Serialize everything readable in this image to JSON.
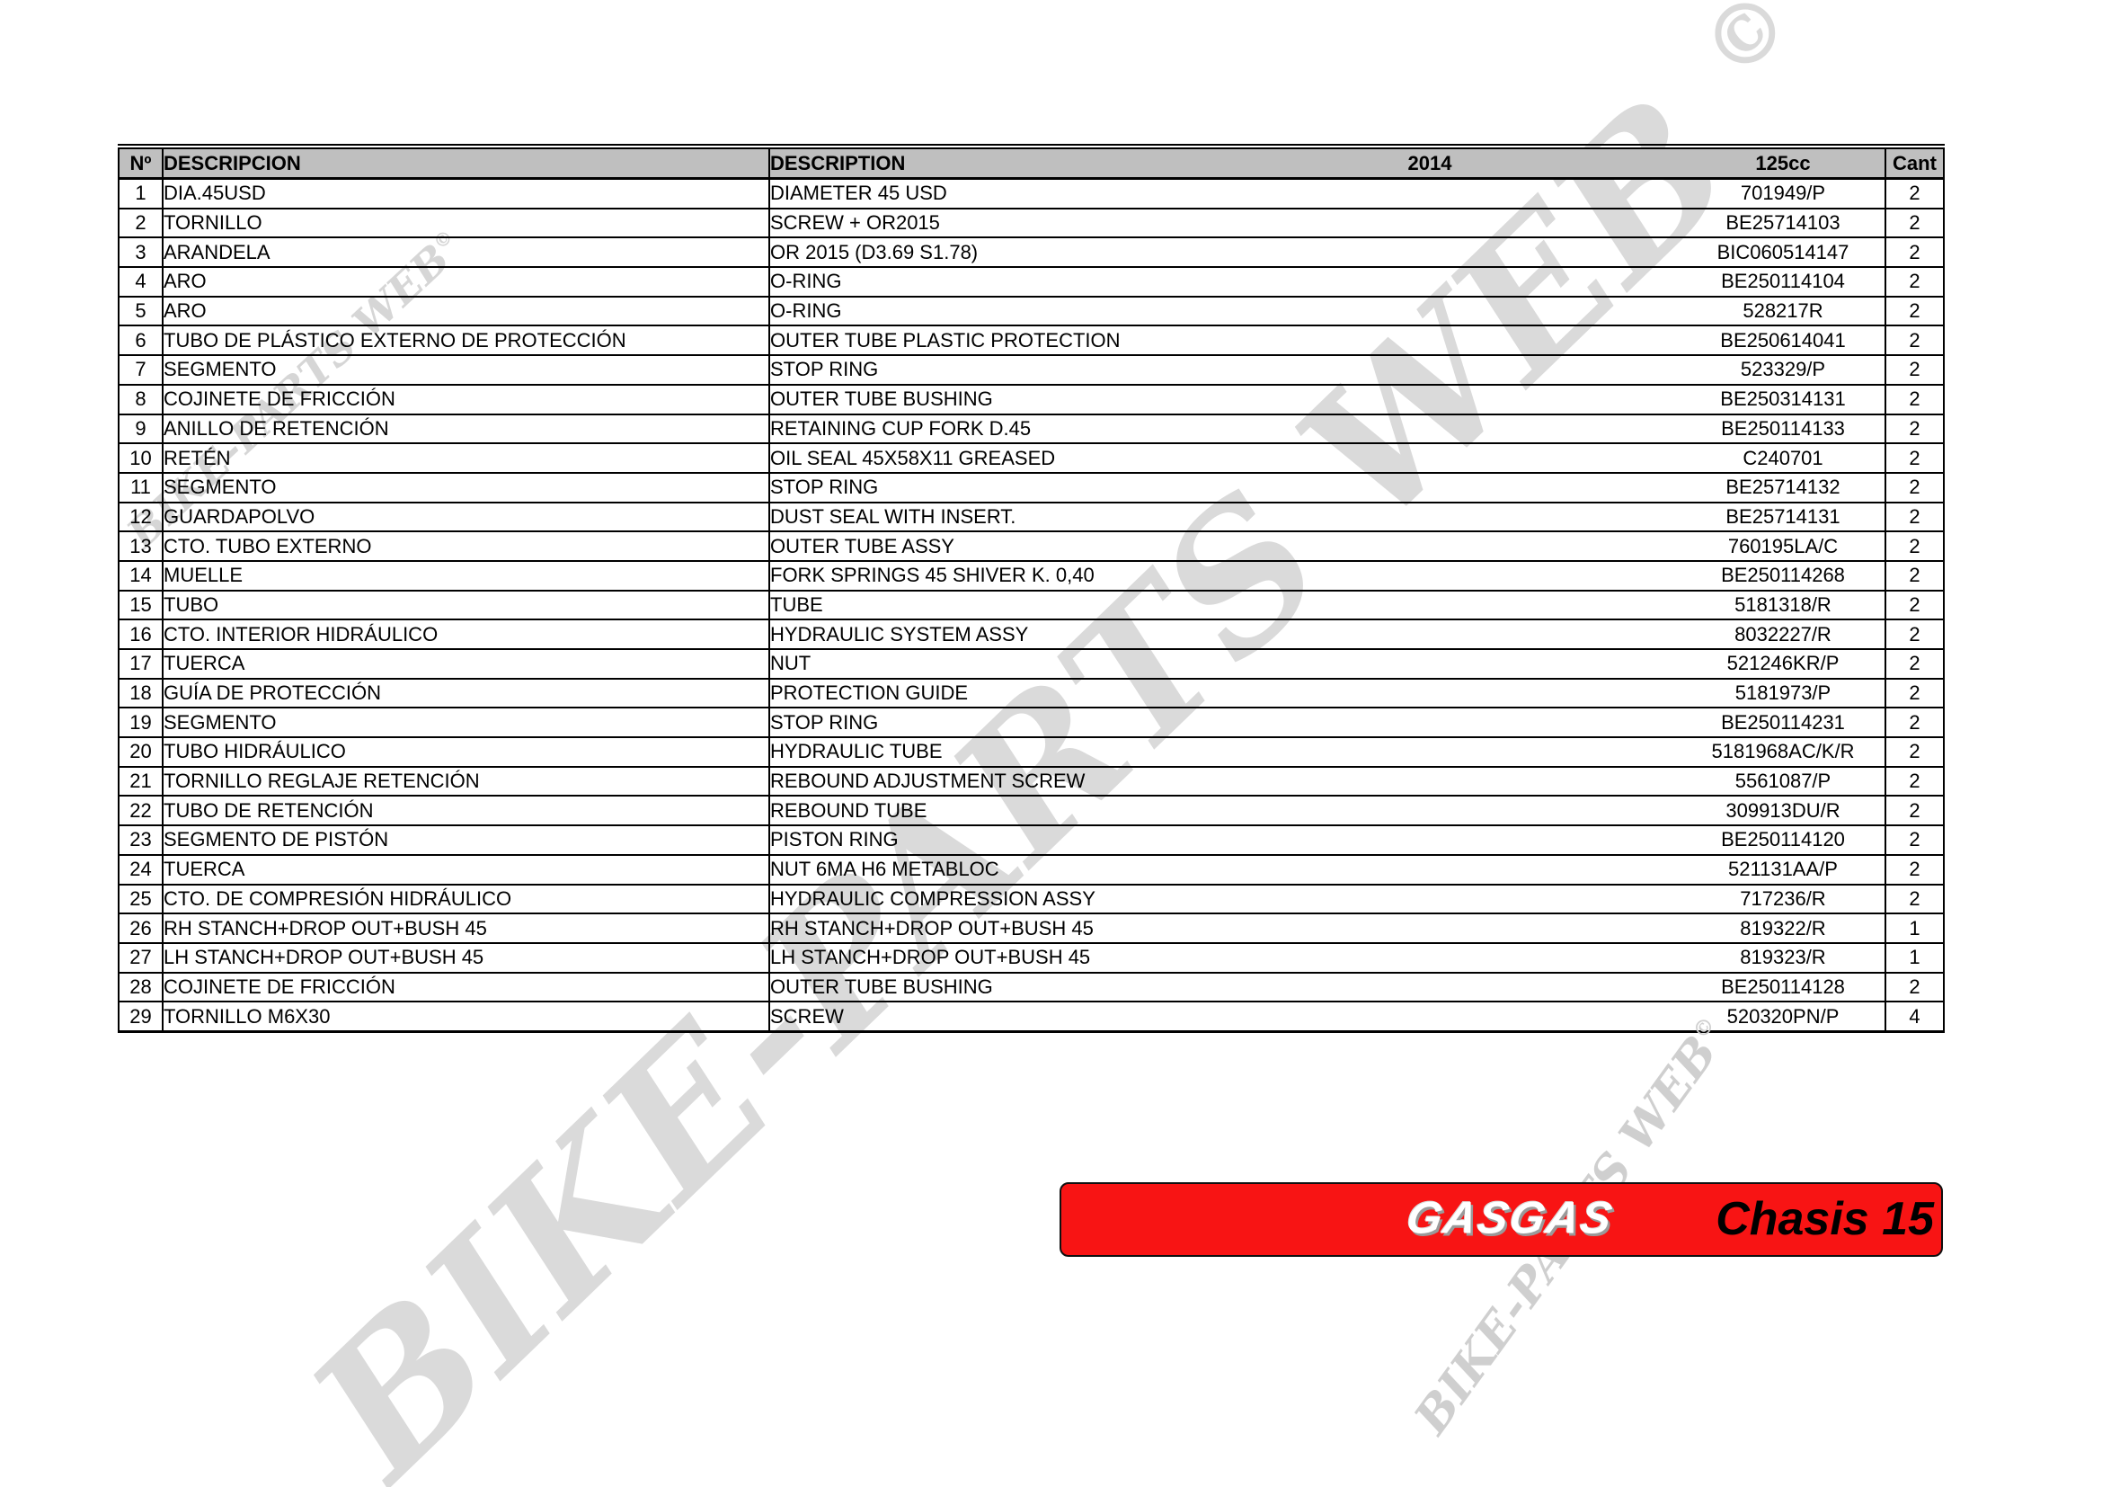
{
  "watermark": {
    "text": "BIKE-PARTS WEB",
    "copyright": "©"
  },
  "colors": {
    "header_bg": "#bfbfbf",
    "border": "#000000",
    "banner_red": "#f81414",
    "watermark_gray": "#d8d8d8"
  },
  "table": {
    "headers": {
      "num": "Nº",
      "desc_es": "DESCRIPCION",
      "desc_en": "DESCRIPTION",
      "year": "2014",
      "model": "125cc",
      "qty": "Cant"
    },
    "rows": [
      {
        "num": "1",
        "desc_es": "DIA.45USD",
        "desc_en": "DIAMETER 45 USD",
        "code": "701949/P",
        "qty": "2"
      },
      {
        "num": "2",
        "desc_es": "TORNILLO",
        "desc_en": "SCREW + OR2015",
        "code": "BE25714103",
        "qty": "2"
      },
      {
        "num": "3",
        "desc_es": "ARANDELA",
        "desc_en": "OR 2015 (D3.69 S1.78)",
        "code": "BIC060514147",
        "qty": "2"
      },
      {
        "num": "4",
        "desc_es": "ARO",
        "desc_en": "O-RING",
        "code": "BE250114104",
        "qty": "2"
      },
      {
        "num": "5",
        "desc_es": "ARO",
        "desc_en": "O-RING",
        "code": "528217R",
        "qty": "2"
      },
      {
        "num": "6",
        "desc_es": "TUBO DE PLÁSTICO EXTERNO DE PROTECCIÓN",
        "desc_en": "OUTER TUBE PLASTIC PROTECTION",
        "code": "BE250614041",
        "qty": "2"
      },
      {
        "num": "7",
        "desc_es": "SEGMENTO",
        "desc_en": "STOP RING",
        "code": "523329/P",
        "qty": "2"
      },
      {
        "num": "8",
        "desc_es": "COJINETE DE FRICCIÓN",
        "desc_en": "OUTER TUBE BUSHING",
        "code": "BE250314131",
        "qty": "2"
      },
      {
        "num": "9",
        "desc_es": "ANILLO DE RETENCIÓN",
        "desc_en": "RETAINING CUP FORK D.45",
        "code": "BE250114133",
        "qty": "2"
      },
      {
        "num": "10",
        "desc_es": "RETÉN",
        "desc_en": "OIL SEAL 45X58X11 GREASED",
        "code": "C240701",
        "qty": "2"
      },
      {
        "num": "11",
        "desc_es": "SEGMENTO",
        "desc_en": "STOP RING",
        "code": "BE25714132",
        "qty": "2"
      },
      {
        "num": "12",
        "desc_es": "GUARDAPOLVO",
        "desc_en": "DUST SEAL WITH INSERT.",
        "code": "BE25714131",
        "qty": "2"
      },
      {
        "num": "13",
        "desc_es": " CTO. TUBO EXTERNO",
        "desc_en": "OUTER TUBE  ASSY",
        "code": "760195LA/C",
        "qty": "2"
      },
      {
        "num": "14",
        "desc_es": "MUELLE",
        "desc_en": "FORK SPRINGS 45 SHIVER K. 0,40",
        "code": "BE250114268",
        "qty": "2"
      },
      {
        "num": "15",
        "desc_es": "TUBO",
        "desc_en": "TUBE",
        "code": "5181318/R",
        "qty": "2"
      },
      {
        "num": "16",
        "desc_es": "CTO. INTERIOR HIDRÁULICO",
        "desc_en": "HYDRAULIC SYSTEM  ASSY",
        "code": "8032227/R",
        "qty": "2"
      },
      {
        "num": "17",
        "desc_es": "TUERCA",
        "desc_en": "NUT",
        "code": "521246KR/P",
        "qty": "2"
      },
      {
        "num": "18",
        "desc_es": "GUÍA DE PROTECCIÓN",
        "desc_en": "PROTECTION GUIDE",
        "code": "5181973/P",
        "qty": "2"
      },
      {
        "num": "19",
        "desc_es": "SEGMENTO",
        "desc_en": "STOP RING",
        "code": "BE250114231",
        "qty": "2"
      },
      {
        "num": "20",
        "desc_es": "TUBO HIDRÁULICO",
        "desc_en": "HYDRAULIC TUBE",
        "code": "5181968AC/K/R",
        "qty": "2"
      },
      {
        "num": "21",
        "desc_es": "TORNILLO REGLAJE RETENCIÓN",
        "desc_en": "REBOUND ADJUSTMENT SCREW",
        "code": "5561087/P",
        "qty": "2"
      },
      {
        "num": "22",
        "desc_es": "TUBO DE RETENCIÓN",
        "desc_en": "REBOUND TUBE",
        "code": "309913DU/R",
        "qty": "2"
      },
      {
        "num": "23",
        "desc_es": "SEGMENTO DE PISTÓN",
        "desc_en": "PISTON RING",
        "code": "BE250114120",
        "qty": "2"
      },
      {
        "num": "24",
        "desc_es": "TUERCA",
        "desc_en": "NUT 6MA H6 METABLOC",
        "code": "521131AA/P",
        "qty": "2"
      },
      {
        "num": "25",
        "desc_es": "CTO. DE COMPRESIÓN HIDRÁULICO",
        "desc_en": "HYDRAULIC COMPRESSION ASSY",
        "code": "717236/R",
        "qty": "2"
      },
      {
        "num": "26",
        "desc_es": "RH STANCH+DROP OUT+BUSH 45",
        "desc_en": "RH STANCH+DROP OUT+BUSH 45",
        "code": "819322/R",
        "qty": "1"
      },
      {
        "num": "27",
        "desc_es": "LH STANCH+DROP OUT+BUSH 45",
        "desc_en": "LH STANCH+DROP OUT+BUSH 45",
        "code": "819323/R",
        "qty": "1"
      },
      {
        "num": "28",
        "desc_es": "COJINETE DE FRICCIÓN",
        "desc_en": "OUTER TUBE BUSHING",
        "code": "BE250114128",
        "qty": "2"
      },
      {
        "num": "29",
        "desc_es": "TORNILLO M6X30",
        "desc_en": "SCREW",
        "code": "520320PN/P",
        "qty": "4"
      }
    ]
  },
  "banner": {
    "brand": "GASGAS",
    "title": "Chasis 15"
  }
}
